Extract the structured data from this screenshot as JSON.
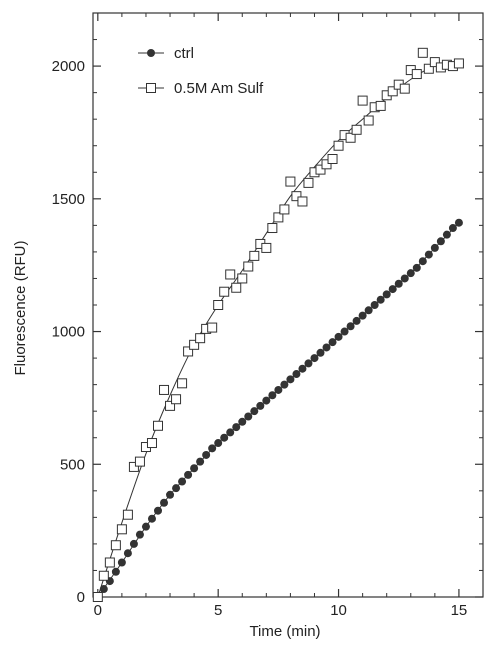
{
  "chart_data": {
    "type": "scatter",
    "title": "",
    "xlabel": "Time (min)",
    "ylabel": "Fluorescence (RFU)",
    "xlim": [
      -0.2,
      16
    ],
    "ylim": [
      0,
      2200
    ],
    "xticks": [
      0,
      5,
      10,
      15
    ],
    "xtick_labels": [
      "0",
      "5",
      "10",
      "15"
    ],
    "yticks": [
      0,
      500,
      1000,
      1500,
      2000
    ],
    "ytick_labels": [
      "0",
      "500",
      "1000",
      "1500",
      "2000"
    ],
    "minor_xticks": [
      1,
      2,
      3,
      4,
      6,
      7,
      8,
      9,
      11,
      12,
      13,
      14
    ],
    "minor_yticks": [
      100,
      200,
      300,
      400,
      600,
      700,
      800,
      900,
      1100,
      1200,
      1300,
      1400,
      1600,
      1700,
      1800,
      1900,
      2100
    ],
    "grid": false,
    "legend_position": "top-left",
    "series": [
      {
        "name": "ctrl",
        "marker": "filled-circle",
        "color": "#333333",
        "x": [
          0.0,
          0.25,
          0.5,
          0.75,
          1.0,
          1.25,
          1.5,
          1.75,
          2.0,
          2.25,
          2.5,
          2.75,
          3.0,
          3.25,
          3.5,
          3.75,
          4.0,
          4.25,
          4.5,
          4.75,
          5.0,
          5.25,
          5.5,
          5.75,
          6.0,
          6.25,
          6.5,
          6.75,
          7.0,
          7.25,
          7.5,
          7.75,
          8.0,
          8.25,
          8.5,
          8.75,
          9.0,
          9.25,
          9.5,
          9.75,
          10.0,
          10.25,
          10.5,
          10.75,
          11.0,
          11.25,
          11.5,
          11.75,
          12.0,
          12.25,
          12.5,
          12.75,
          13.0,
          13.25,
          13.5,
          13.75,
          14.0,
          14.25,
          14.5,
          14.75,
          15.0
        ],
        "y": [
          0,
          30,
          60,
          95,
          130,
          165,
          200,
          235,
          265,
          295,
          325,
          355,
          385,
          410,
          435,
          460,
          485,
          510,
          535,
          560,
          580,
          600,
          620,
          640,
          660,
          680,
          700,
          720,
          740,
          760,
          780,
          800,
          820,
          840,
          860,
          880,
          900,
          920,
          940,
          960,
          980,
          1000,
          1020,
          1040,
          1060,
          1080,
          1100,
          1120,
          1140,
          1160,
          1180,
          1200,
          1220,
          1240,
          1265,
          1290,
          1315,
          1340,
          1365,
          1390,
          1410
        ],
        "fit_x": [
          0,
          1,
          2,
          3,
          4,
          5,
          6,
          7,
          8,
          9,
          10,
          11,
          12,
          13,
          14,
          15
        ],
        "fit_y": [
          0,
          130,
          265,
          385,
          485,
          580,
          660,
          740,
          820,
          900,
          980,
          1060,
          1140,
          1220,
          1315,
          1410
        ]
      },
      {
        "name": "0.5M Am Sulf",
        "marker": "open-square",
        "color": "#333333",
        "x": [
          0.0,
          0.25,
          0.5,
          0.75,
          1.0,
          1.25,
          1.5,
          1.75,
          2.0,
          2.25,
          2.5,
          2.75,
          3.0,
          3.25,
          3.5,
          3.75,
          4.0,
          4.25,
          4.5,
          4.75,
          5.0,
          5.25,
          5.5,
          5.75,
          6.0,
          6.25,
          6.5,
          6.75,
          7.0,
          7.25,
          7.5,
          7.75,
          8.0,
          8.25,
          8.5,
          8.75,
          9.0,
          9.25,
          9.5,
          9.75,
          10.0,
          10.25,
          10.5,
          10.75,
          11.0,
          11.25,
          11.5,
          11.75,
          12.0,
          12.25,
          12.5,
          12.75,
          13.0,
          13.25,
          13.5,
          13.75,
          14.0,
          14.25,
          14.5,
          14.75,
          15.0
        ],
        "y": [
          0,
          80,
          130,
          195,
          255,
          310,
          490,
          510,
          565,
          580,
          645,
          780,
          720,
          745,
          805,
          925,
          950,
          975,
          1010,
          1015,
          1100,
          1150,
          1215,
          1165,
          1200,
          1245,
          1285,
          1330,
          1315,
          1390,
          1430,
          1460,
          1565,
          1510,
          1490,
          1560,
          1600,
          1610,
          1630,
          1650,
          1700,
          1740,
          1730,
          1760,
          1870,
          1795,
          1845,
          1850,
          1890,
          1905,
          1930,
          1915,
          1985,
          1970,
          2050,
          1990,
          2015,
          1995,
          2005,
          2000,
          2010
        ],
        "fit_x": [
          0,
          1,
          2,
          3,
          4,
          5,
          6,
          7,
          8,
          9,
          10,
          11,
          12,
          13,
          14,
          15
        ],
        "fit_y": [
          0,
          280,
          540,
          760,
          950,
          1100,
          1230,
          1370,
          1510,
          1620,
          1720,
          1800,
          1880,
          1950,
          2000,
          2010
        ]
      }
    ]
  }
}
